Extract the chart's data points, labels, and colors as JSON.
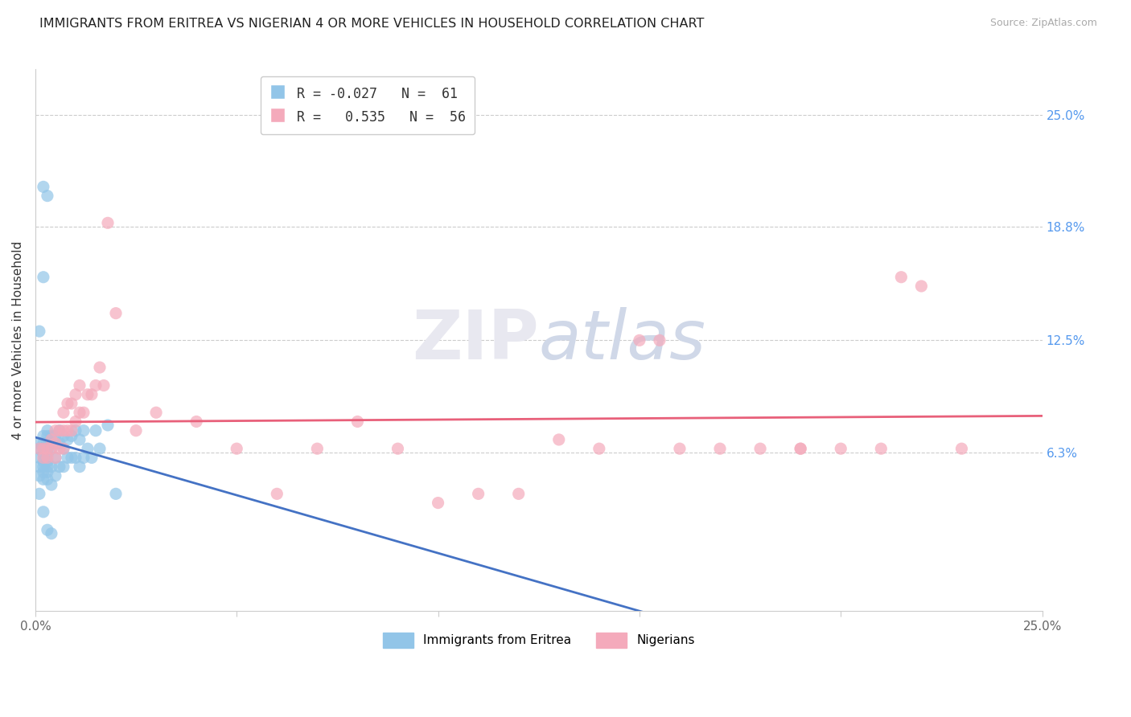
{
  "title": "IMMIGRANTS FROM ERITREA VS NIGERIAN 4 OR MORE VEHICLES IN HOUSEHOLD CORRELATION CHART",
  "source": "Source: ZipAtlas.com",
  "ylabel": "4 or more Vehicles in Household",
  "xlim": [
    0.0,
    0.25
  ],
  "ylim": [
    -0.025,
    0.275
  ],
  "right_yticks": [
    0.063,
    0.125,
    0.188,
    0.25
  ],
  "right_yticklabels": [
    "6.3%",
    "12.5%",
    "18.8%",
    "25.0%"
  ],
  "grid_color": "#cccccc",
  "background_color": "#ffffff",
  "eritrea_color": "#92C5E8",
  "nigerian_color": "#F4AABB",
  "eritrea_line_color": "#4472C4",
  "nigerian_line_color": "#E8607A",
  "eritrea_R": -0.027,
  "eritrea_N": 61,
  "nigerian_R": 0.535,
  "nigerian_N": 56,
  "eritrea_x": [
    0.001,
    0.001,
    0.001,
    0.001,
    0.001,
    0.002,
    0.002,
    0.002,
    0.002,
    0.002,
    0.002,
    0.002,
    0.002,
    0.003,
    0.003,
    0.003,
    0.003,
    0.003,
    0.003,
    0.003,
    0.003,
    0.003,
    0.004,
    0.004,
    0.004,
    0.004,
    0.004,
    0.005,
    0.005,
    0.005,
    0.005,
    0.006,
    0.006,
    0.006,
    0.007,
    0.007,
    0.007,
    0.008,
    0.008,
    0.009,
    0.009,
    0.01,
    0.01,
    0.011,
    0.011,
    0.012,
    0.012,
    0.013,
    0.014,
    0.015,
    0.016,
    0.018,
    0.02,
    0.002,
    0.003,
    0.002,
    0.001,
    0.001,
    0.002,
    0.003,
    0.004
  ],
  "eritrea_y": [
    0.068,
    0.065,
    0.06,
    0.055,
    0.05,
    0.072,
    0.068,
    0.065,
    0.062,
    0.058,
    0.055,
    0.052,
    0.048,
    0.075,
    0.072,
    0.068,
    0.065,
    0.062,
    0.058,
    0.055,
    0.052,
    0.048,
    0.072,
    0.068,
    0.065,
    0.055,
    0.045,
    0.072,
    0.068,
    0.06,
    0.05,
    0.075,
    0.068,
    0.055,
    0.072,
    0.065,
    0.055,
    0.07,
    0.06,
    0.072,
    0.06,
    0.075,
    0.06,
    0.07,
    0.055,
    0.075,
    0.06,
    0.065,
    0.06,
    0.075,
    0.065,
    0.078,
    0.04,
    0.21,
    0.205,
    0.16,
    0.13,
    0.04,
    0.03,
    0.02,
    0.018
  ],
  "nigerian_x": [
    0.001,
    0.002,
    0.002,
    0.003,
    0.003,
    0.004,
    0.004,
    0.005,
    0.005,
    0.005,
    0.006,
    0.006,
    0.007,
    0.007,
    0.007,
    0.008,
    0.008,
    0.009,
    0.009,
    0.01,
    0.01,
    0.011,
    0.011,
    0.012,
    0.013,
    0.014,
    0.015,
    0.016,
    0.017,
    0.018,
    0.02,
    0.025,
    0.03,
    0.04,
    0.05,
    0.06,
    0.07,
    0.08,
    0.09,
    0.1,
    0.11,
    0.12,
    0.13,
    0.14,
    0.15,
    0.16,
    0.17,
    0.18,
    0.19,
    0.2,
    0.21,
    0.215,
    0.22,
    0.23,
    0.155,
    0.19
  ],
  "nigerian_y": [
    0.065,
    0.065,
    0.06,
    0.065,
    0.06,
    0.07,
    0.065,
    0.075,
    0.068,
    0.06,
    0.075,
    0.065,
    0.085,
    0.075,
    0.065,
    0.09,
    0.075,
    0.09,
    0.075,
    0.095,
    0.08,
    0.1,
    0.085,
    0.085,
    0.095,
    0.095,
    0.1,
    0.11,
    0.1,
    0.19,
    0.14,
    0.075,
    0.085,
    0.08,
    0.065,
    0.04,
    0.065,
    0.08,
    0.065,
    0.035,
    0.04,
    0.04,
    0.07,
    0.065,
    0.125,
    0.065,
    0.065,
    0.065,
    0.065,
    0.065,
    0.065,
    0.16,
    0.155,
    0.065,
    0.125,
    0.065
  ]
}
